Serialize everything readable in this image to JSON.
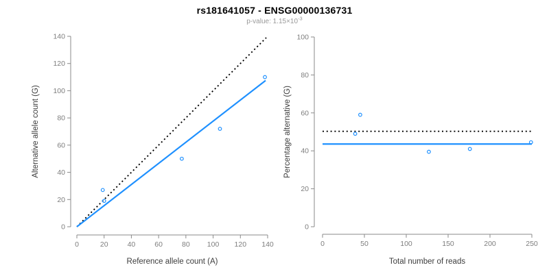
{
  "title": "rs181641057 - ENSG00000136731",
  "subtitle": {
    "prefix": "p-value: ",
    "mantissa": "1.15×10",
    "exponent": "-3"
  },
  "colors": {
    "accent_blue": "#1E90FF",
    "dotted_black": "#000000",
    "axis_line": "#8a8a8a",
    "tick_label": "#7d7d7d",
    "axis_title": "#3c3c3c",
    "subtitle_gray": "#999999",
    "title_color": "#000000",
    "background": "#ffffff"
  },
  "chart_data": [
    {
      "type": "scatter",
      "name": "allele-counts-scatter",
      "xlabel": "Reference allele count (A)",
      "ylabel": "Alternative allele count (G)",
      "xlim": [
        0,
        140
      ],
      "ylim": [
        0,
        140
      ],
      "xticks": [
        0,
        20,
        40,
        60,
        80,
        100,
        120,
        140
      ],
      "yticks": [
        0,
        20,
        40,
        60,
        80,
        100,
        120,
        140
      ],
      "grid": false,
      "points": [
        [
          19,
          27
        ],
        [
          20,
          19
        ],
        [
          77,
          50
        ],
        [
          105,
          72
        ],
        [
          138,
          110
        ]
      ],
      "lines": [
        {
          "name": "identity-line",
          "style": "dotted",
          "color": "#000000",
          "x": [
            0,
            139
          ],
          "y": [
            0,
            139
          ]
        },
        {
          "name": "regression-line",
          "style": "solid",
          "color": "#1E90FF",
          "x": [
            0,
            138.5
          ],
          "y": [
            0,
            107.5
          ]
        }
      ]
    },
    {
      "type": "scatter",
      "name": "percentage-vs-reads-scatter",
      "xlabel": "Total number of reads",
      "ylabel": "Percentage alternative (G)",
      "xlim": [
        0,
        250
      ],
      "ylim": [
        0,
        100
      ],
      "xticks": [
        0,
        50,
        100,
        150,
        200,
        250
      ],
      "yticks": [
        0,
        20,
        40,
        60,
        80,
        100
      ],
      "grid": false,
      "points": [
        [
          39,
          49
        ],
        [
          45,
          59
        ],
        [
          127,
          39.5
        ],
        [
          176,
          41
        ],
        [
          249,
          44.5
        ]
      ],
      "lines": [
        {
          "name": "expected-50pct-line",
          "style": "dotted",
          "color": "#000000",
          "x": [
            0,
            250
          ],
          "y": [
            50.3,
            50.3
          ]
        },
        {
          "name": "mean-percentage-line",
          "style": "solid",
          "color": "#1E90FF",
          "x": [
            0,
            250
          ],
          "y": [
            43.6,
            43.6
          ]
        }
      ]
    }
  ]
}
